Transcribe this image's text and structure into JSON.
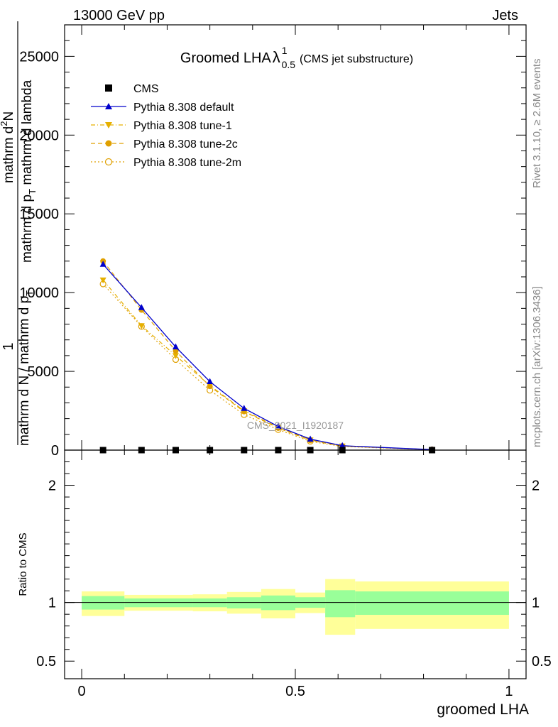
{
  "header": {
    "left": "13000 GeV pp",
    "right": "Jets"
  },
  "side": {
    "rivet": "Rivet 3.1.10, ≥ 2.6M events",
    "mcplots": "mcplots.cern.ch [arXiv:1306.3436]"
  },
  "chart_data": [
    {
      "type": "line",
      "title_main": "Groomed LHA",
      "title_lambda": "λ",
      "title_sup": "1",
      "title_sub": "0.5",
      "title_note": "(CMS jet substructure)",
      "watermark": "CMS_2021_I1920187",
      "ylabel_parts": {
        "numerator_one": "1",
        "denominator": "mathrm d N / mathrm d p",
        "denominator_sub": "T",
        "upper_line1": "mathrm d",
        "upper_line1_sup": "2",
        "upper_line1_tail": "N",
        "upper_line2": "mathrm d p",
        "upper_line2_sub": "T",
        "upper_line2_tail": " mathrm d lambda"
      },
      "xlim": [
        -0.04,
        1.04
      ],
      "ylim": [
        0,
        27000
      ],
      "yticks": [
        0,
        5000,
        10000,
        15000,
        20000,
        25000
      ],
      "ytick_labels": [
        "0",
        "5000",
        "10000",
        "15000",
        "20000",
        "25000"
      ],
      "xticks": [
        0,
        0.5,
        1
      ],
      "legend_position": "top-left",
      "legend": [
        {
          "label": "CMS",
          "color": "#000000",
          "marker": "square",
          "dash": "none"
        },
        {
          "label": "Pythia 8.308 default",
          "color": "#0000cc",
          "marker": "triangle-up",
          "dash": "solid"
        },
        {
          "label": "Pythia 8.308 tune-1",
          "color": "#e6b000",
          "marker": "triangle-down",
          "dash": "dashdot"
        },
        {
          "label": "Pythia 8.308 tune-2c",
          "color": "#e0a000",
          "marker": "circle",
          "dash": "dashed"
        },
        {
          "label": "Pythia 8.308 tune-2m",
          "color": "#e0a000",
          "marker": "open-circle",
          "dash": "dotted"
        }
      ],
      "cms_points": {
        "x": [
          0.05,
          0.14,
          0.22,
          0.3,
          0.38,
          0.46,
          0.535,
          0.61,
          0.82
        ],
        "y": [
          0,
          0,
          0,
          0,
          0,
          0,
          0,
          0,
          0
        ]
      },
      "series": [
        {
          "name": "Pythia 8.308 default",
          "color": "#0000cc",
          "marker": "triangle-up",
          "x": [
            0.05,
            0.14,
            0.22,
            0.3,
            0.38,
            0.46,
            0.535,
            0.61,
            0.82
          ],
          "y": [
            11800,
            9050,
            6550,
            4350,
            2650,
            1500,
            700,
            280,
            30
          ]
        },
        {
          "name": "Pythia 8.308 tune-1",
          "color": "#e6b000",
          "marker": "triangle-down",
          "x": [
            0.05,
            0.14,
            0.22,
            0.3,
            0.38,
            0.46,
            0.535,
            0.61,
            0.82
          ],
          "y": [
            10800,
            7900,
            6000,
            4100,
            2500,
            1450,
            650,
            260,
            28
          ]
        },
        {
          "name": "Pythia 8.308 tune-2c",
          "color": "#e0a000",
          "marker": "circle",
          "x": [
            0.05,
            0.14,
            0.22,
            0.3,
            0.38,
            0.46,
            0.535,
            0.61,
            0.82
          ],
          "y": [
            12000,
            8900,
            6300,
            4050,
            2450,
            1400,
            620,
            250,
            26
          ]
        },
        {
          "name": "Pythia 8.308 tune-2m",
          "color": "#e0a000",
          "marker": "open-circle",
          "x": [
            0.05,
            0.14,
            0.22,
            0.3,
            0.38,
            0.46,
            0.535,
            0.61,
            0.82
          ],
          "y": [
            10550,
            7850,
            5750,
            3800,
            2250,
            1300,
            560,
            230,
            24
          ]
        }
      ]
    },
    {
      "type": "area",
      "ylabel": "Ratio to CMS",
      "xlabel": "groomed LHA",
      "xlim": [
        -0.04,
        1.04
      ],
      "ylim": [
        0.35,
        2.3
      ],
      "yticks": [
        0.5,
        1,
        2
      ],
      "ytick_labels": [
        "0.5",
        "1",
        "2"
      ],
      "xticks": [
        0,
        0.5,
        1
      ],
      "xtick_labels": [
        "0",
        "0.5",
        "1"
      ],
      "band_colors": {
        "outer": "#ffff99",
        "inner": "#99ff99"
      },
      "bins": [
        {
          "lo": 0.0,
          "hi": 0.1,
          "yellow": [
            0.885,
            1.095
          ],
          "green": [
            0.94,
            1.055
          ]
        },
        {
          "lo": 0.1,
          "hi": 0.26,
          "yellow": [
            0.93,
            1.065
          ],
          "green": [
            0.96,
            1.035
          ]
        },
        {
          "lo": 0.26,
          "hi": 0.34,
          "yellow": [
            0.925,
            1.07
          ],
          "green": [
            0.96,
            1.035
          ]
        },
        {
          "lo": 0.34,
          "hi": 0.42,
          "yellow": [
            0.905,
            1.09
          ],
          "green": [
            0.95,
            1.045
          ]
        },
        {
          "lo": 0.42,
          "hi": 0.5,
          "yellow": [
            0.865,
            1.115
          ],
          "green": [
            0.935,
            1.06
          ]
        },
        {
          "lo": 0.5,
          "hi": 0.57,
          "yellow": [
            0.91,
            1.085
          ],
          "green": [
            0.955,
            1.045
          ]
        },
        {
          "lo": 0.57,
          "hi": 0.64,
          "yellow": [
            0.725,
            1.2
          ],
          "green": [
            0.875,
            1.105
          ]
        },
        {
          "lo": 0.64,
          "hi": 1.0,
          "yellow": [
            0.775,
            1.18
          ],
          "green": [
            0.895,
            1.095
          ]
        }
      ]
    }
  ]
}
